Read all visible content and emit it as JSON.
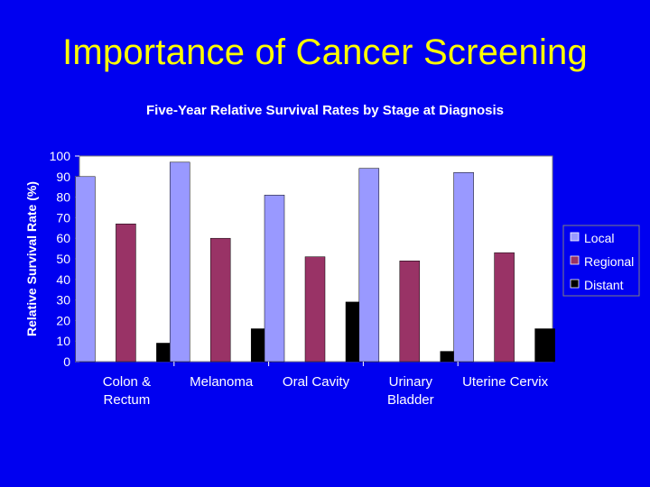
{
  "slide": {
    "title": "Importance of Cancer Screening"
  },
  "colors": {
    "background": "#0000F0",
    "title": "#FFFF00",
    "plot_area": "#FFFFFF",
    "text": "#FFFFFF"
  },
  "chart_data": {
    "type": "bar",
    "title": "Five-Year Relative Survival Rates by Stage at Diagnosis",
    "xlabel": "",
    "ylabel": "Relative Survival Rate (%)",
    "ylim": [
      0,
      100
    ],
    "yticks": [
      0,
      10,
      20,
      30,
      40,
      50,
      60,
      70,
      80,
      90,
      100
    ],
    "grid": false,
    "legend_position": "right",
    "categories": [
      [
        "Colon &",
        "Rectum"
      ],
      [
        "Melanoma"
      ],
      [
        "Oral Cavity"
      ],
      [
        "Urinary",
        "Bladder"
      ],
      [
        "Uterine Cervix"
      ]
    ],
    "series": [
      {
        "name": "Local",
        "color": "#9999FF",
        "values": [
          90,
          97,
          81,
          94,
          92
        ]
      },
      {
        "name": "Regional",
        "color": "#993366",
        "values": [
          67,
          60,
          51,
          49,
          53
        ]
      },
      {
        "name": "Distant",
        "color": "#000000",
        "values": [
          9,
          16,
          29,
          5,
          16
        ]
      }
    ]
  }
}
